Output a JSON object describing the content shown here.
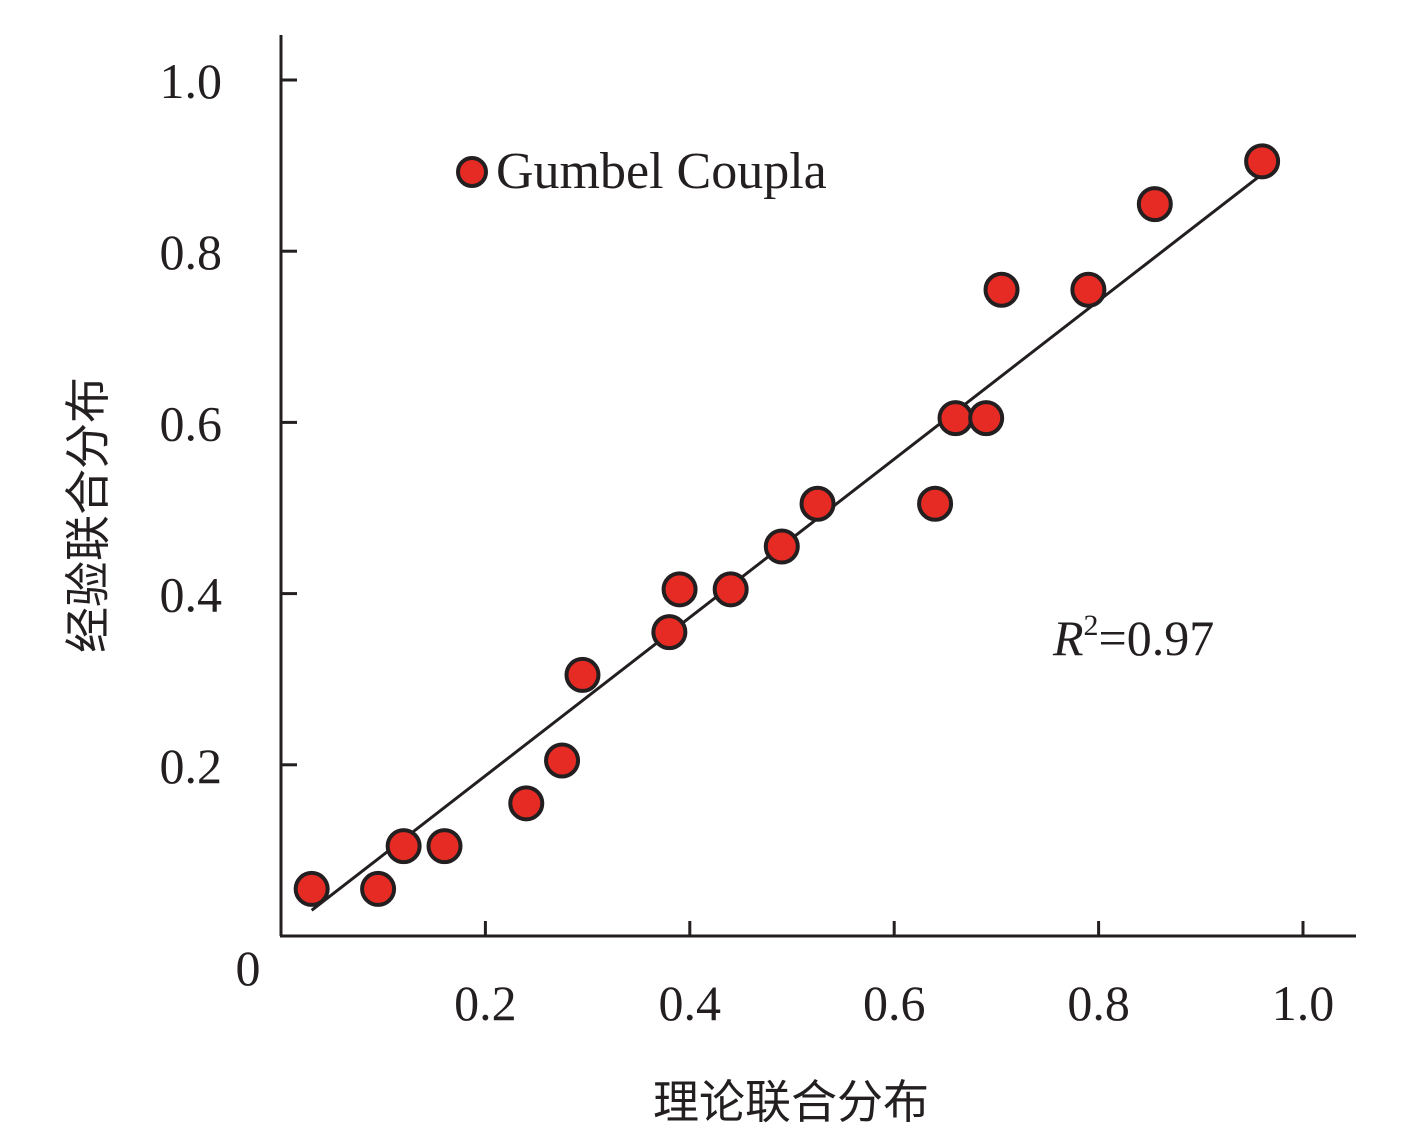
{
  "chart_data": {
    "type": "scatter",
    "xlabel": "理论联合分布",
    "ylabel": "经验联合分布",
    "xlim": [
      0,
      1.05
    ],
    "ylim": [
      0,
      1.0
    ],
    "origin_label": "0",
    "x_ticks": [
      "0.2",
      "0.4",
      "0.6",
      "0.8",
      "1.0"
    ],
    "x_tick_values": [
      0.2,
      0.4,
      0.6,
      0.8,
      1.0
    ],
    "y_ticks": [
      "0.2",
      "0.4",
      "0.6",
      "0.8",
      "1.0"
    ],
    "y_tick_values": [
      0.2,
      0.4,
      0.6,
      0.8,
      1.0
    ],
    "legend": {
      "label": "Gumbel Coupla",
      "placement": "top-left"
    },
    "annotation": {
      "prefix": "R",
      "superscript": "2",
      "suffix": "=0.97"
    },
    "fit_line": {
      "x": [
        0.03,
        0.96
      ],
      "y": [
        0.03,
        0.89
      ]
    },
    "series": [
      {
        "name": "Gumbel Coupla",
        "marker_color": "#e52b23",
        "x": [
          0.03,
          0.095,
          0.12,
          0.16,
          0.24,
          0.275,
          0.295,
          0.38,
          0.39,
          0.44,
          0.49,
          0.525,
          0.64,
          0.66,
          0.69,
          0.705,
          0.79,
          0.855,
          0.96
        ],
        "y": [
          0.055,
          0.055,
          0.105,
          0.105,
          0.155,
          0.205,
          0.305,
          0.355,
          0.405,
          0.405,
          0.455,
          0.505,
          0.505,
          0.605,
          0.605,
          0.755,
          0.755,
          0.855,
          0.905
        ]
      }
    ],
    "grid": false
  }
}
